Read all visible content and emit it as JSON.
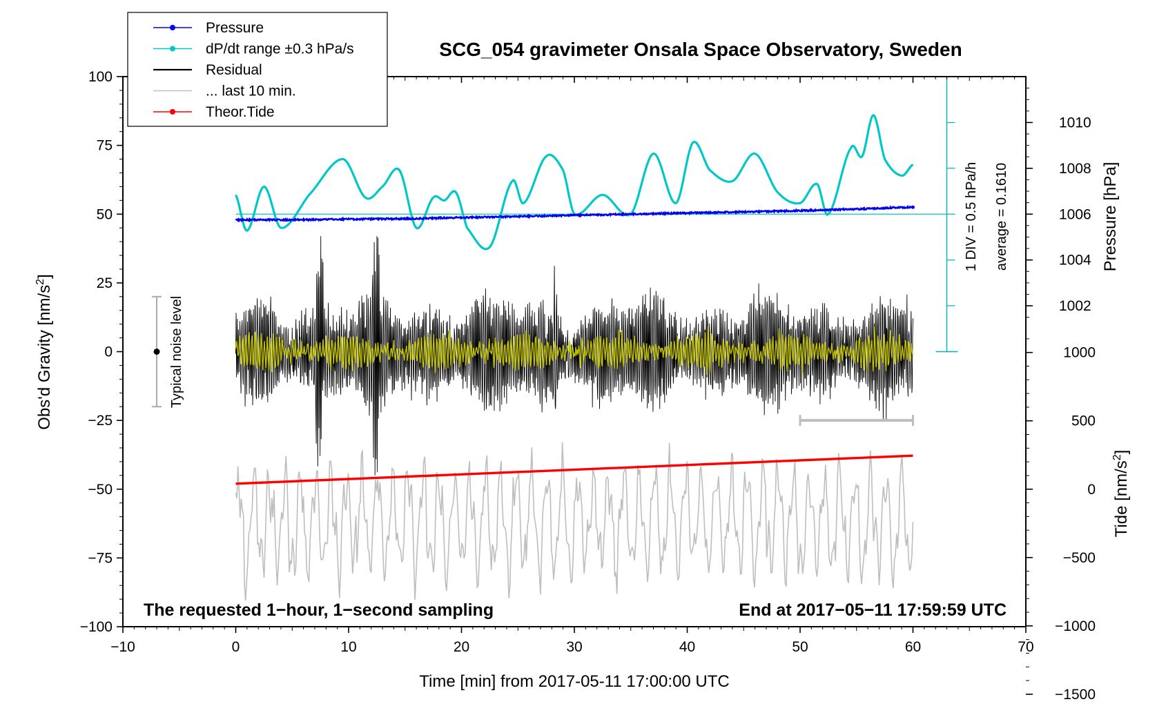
{
  "chart_data": {
    "type": "line",
    "title": "SCG_054 gravimeter Onsala Space Observatory, Sweden",
    "xlabel": "Time [min] from 2017-05-11 17:00:00 UTC",
    "ylabel": "Obs'd Gravity [nm/s²]",
    "ylabel_main": "Obs'd Gravity [nm/s",
    "ylabel_sup": "2",
    "ylabel_tail": "]",
    "xlim": [
      -10,
      70
    ],
    "ylim": [
      -100,
      100
    ],
    "xticks": [
      "−10",
      "0",
      "10",
      "20",
      "30",
      "40",
      "50",
      "60",
      "70"
    ],
    "yticks": [
      "−100",
      "−75",
      "−50",
      "−25",
      "0",
      "25",
      "50",
      "75",
      "100"
    ],
    "pressure_axis": {
      "label": "Pressure [hPa]",
      "ticks": [
        "1002",
        "1004",
        "1006",
        "1008",
        "1010"
      ],
      "values": [
        1002,
        1004,
        1006,
        1008,
        1010
      ],
      "ref_value": 1006,
      "ref_gravity": 50,
      "gravity_per_hPa": 8.33
    },
    "tide_axis": {
      "label": "Tide [nm/s²]",
      "label_main": "Tide [nm/s",
      "label_sup": "2",
      "label_tail": "]",
      "ticks": [
        "−1500",
        "−1000",
        "−500",
        "0",
        "500",
        "1000"
      ],
      "values": [
        -1500,
        -1000,
        -500,
        0,
        500,
        1000
      ],
      "ref_value": 0,
      "ref_gravity": -50,
      "gravity_per_unit": 0.0497
    },
    "legend": {
      "position": "top-left",
      "entries": [
        {
          "name": "Pressure",
          "color": "#0000ee",
          "marker": true
        },
        {
          "name": "dP/dt range ±0.3 hPa/s",
          "color": "#00c8c8",
          "marker": true
        },
        {
          "name": "Residual",
          "color": "#000000",
          "marker": false
        },
        {
          "name": "... last 10 min.",
          "color": "#bebebe",
          "marker": false
        },
        {
          "name": "Theor.Tide",
          "color": "#ff0000",
          "marker": true
        }
      ]
    },
    "series": [
      {
        "name": "Pressure",
        "color": "#0000ee",
        "axis": "pressure",
        "x": [
          0,
          5,
          10,
          15,
          20,
          25,
          30,
          35,
          40,
          45,
          50,
          55,
          60
        ],
        "values": [
          1005.75,
          1005.75,
          1005.78,
          1005.8,
          1005.85,
          1005.9,
          1005.95,
          1006.0,
          1006.05,
          1006.1,
          1006.15,
          1006.22,
          1006.3
        ]
      },
      {
        "name": "dP/dt range ±0.3 hPa/s",
        "color": "#00c8c8",
        "axis": "gravity",
        "x": [
          0,
          1,
          2.5,
          4,
          6.5,
          9.5,
          11.5,
          13,
          14.5,
          16,
          17.5,
          18.5,
          19.5,
          20.5,
          22.5,
          24.5,
          25.5,
          27.5,
          29,
          30,
          32.5,
          35,
          37,
          39,
          40.5,
          42,
          44,
          46,
          48,
          50,
          51.5,
          52.5,
          54.5,
          55.5,
          56.5,
          57.5,
          59,
          60
        ],
        "values": [
          57,
          44,
          60,
          45,
          57,
          70,
          56,
          60,
          66,
          45,
          56,
          55,
          58,
          45,
          38,
          62,
          54,
          71,
          66,
          50,
          57,
          50,
          72,
          54,
          76,
          66,
          62,
          72,
          58,
          54,
          61,
          50,
          74,
          71,
          86,
          70,
          64,
          68
        ]
      },
      {
        "name": "Residual",
        "color": "#000000",
        "axis": "gravity",
        "x_range": [
          0,
          60
        ],
        "amplitude_range": [
          -45,
          42
        ],
        "typical_amplitude": 14
      },
      {
        "name": "... last 10 min.",
        "color": "#bebebe",
        "axis": "gravity",
        "x_range": [
          0,
          60
        ],
        "center": -62,
        "amplitude_range": [
          -92,
          -33
        ]
      },
      {
        "name": "Theor.Tide",
        "color": "#ff0000",
        "axis": "tide",
        "x": [
          0,
          60
        ],
        "values": [
          40,
          245
        ]
      }
    ],
    "pressure_scale_bar": {
      "label": "1 DIV = 0.5 hPa/h",
      "average": "average = 0.1610",
      "x": 63,
      "ylim": [
        0,
        100
      ],
      "div_values": [
        0,
        16.7,
        33.3,
        50,
        66.7,
        83.3,
        100
      ]
    },
    "reference_line": {
      "x": [
        0,
        63
      ],
      "value": 50,
      "color": "#00c8c8"
    },
    "scale_bar": {
      "x": [
        50,
        60
      ],
      "value": -25,
      "color": "#bebebe"
    },
    "noise_indicator": {
      "label": "Typical noise level",
      "x": -7,
      "center": 0,
      "range": [
        -20,
        20
      ]
    },
    "annotations": [
      "The requested 1−hour, 1−second sampling",
      "End at 2017−05−11 17:59:59 UTC"
    ],
    "grid": false
  }
}
